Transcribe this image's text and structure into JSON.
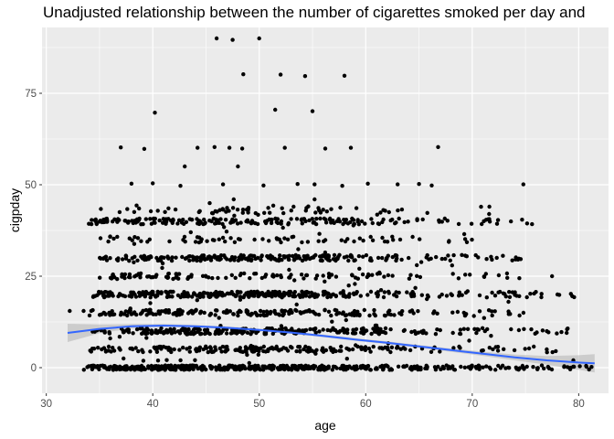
{
  "chart_data": {
    "type": "scatter",
    "title": "Unadjusted relationship between the number of cigarettes smoked per day and",
    "xlabel": "age",
    "ylabel": "cigpday",
    "xlim": [
      29.6,
      82.8
    ],
    "ylim": [
      -7,
      93
    ],
    "xticks": [
      30,
      40,
      50,
      60,
      70,
      80
    ],
    "yticks": [
      0,
      25,
      50,
      75
    ],
    "grid": true,
    "legend": "none",
    "colors": {
      "panel": "#ebebeb",
      "grid": "#ffffff",
      "points": "#000000",
      "smooth": "#3366ff",
      "ribbon": "#b3b3b3"
    },
    "points": [
      [
        46,
        90
      ],
      [
        47.5,
        89.6
      ],
      [
        50,
        90
      ],
      [
        48.5,
        80.2
      ],
      [
        52,
        80.1
      ],
      [
        54.3,
        79.7
      ],
      [
        58,
        79.8
      ],
      [
        51.5,
        70.5
      ],
      [
        55,
        70.1
      ],
      [
        40.2,
        69.7
      ],
      [
        37,
        60.2
      ],
      [
        39.2,
        59.8
      ],
      [
        44.2,
        60.1
      ],
      [
        45.8,
        60.3
      ],
      [
        47.2,
        60.1
      ],
      [
        48.4,
        59.9
      ],
      [
        52.4,
        60.1
      ],
      [
        56.2,
        59.9
      ],
      [
        58.6,
        60.1
      ],
      [
        66.8,
        60.3
      ],
      [
        43,
        55
      ],
      [
        48,
        55
      ],
      [
        38,
        50.3
      ],
      [
        40,
        50.4
      ],
      [
        42.6,
        49.7
      ],
      [
        46.6,
        50.1
      ],
      [
        50.4,
        49.8
      ],
      [
        53.6,
        50.2
      ],
      [
        55.2,
        50.1
      ],
      [
        57.8,
        49.7
      ],
      [
        60.2,
        50.3
      ],
      [
        63,
        50.1
      ],
      [
        65,
        50.2
      ],
      [
        66.2,
        49.8
      ],
      [
        74.8,
        50.1
      ],
      [
        47.6,
        46
      ],
      [
        55.2,
        46
      ],
      [
        33.5,
        15.5
      ],
      [
        32.2,
        15.5
      ],
      [
        36,
        8
      ],
      [
        35.2,
        5
      ],
      [
        34.3,
        0.3
      ],
      [
        80.7,
        0.5
      ],
      [
        81.2,
        0.2
      ],
      [
        79.5,
        2
      ],
      [
        77.5,
        25
      ],
      [
        78,
        20
      ]
    ],
    "smooth": [
      [
        32,
        9.5
      ],
      [
        35,
        10.6
      ],
      [
        38,
        11.3
      ],
      [
        41,
        11.5
      ],
      [
        44,
        11.3
      ],
      [
        47,
        10.9
      ],
      [
        50,
        10.3
      ],
      [
        53,
        9.6
      ],
      [
        56,
        8.7
      ],
      [
        59,
        7.7
      ],
      [
        62,
        6.8
      ],
      [
        65,
        5.8
      ],
      [
        68,
        4.8
      ],
      [
        71,
        3.8
      ],
      [
        74,
        2.8
      ],
      [
        77,
        2
      ],
      [
        80,
        1.4
      ],
      [
        81.5,
        1.2
      ]
    ],
    "ribbon_halfwidth": [
      [
        32,
        2.5
      ],
      [
        35,
        1.2
      ],
      [
        38,
        0.6
      ],
      [
        41,
        0.4
      ],
      [
        45,
        0.35
      ],
      [
        50,
        0.35
      ],
      [
        55,
        0.35
      ],
      [
        60,
        0.35
      ],
      [
        65,
        0.4
      ],
      [
        70,
        0.5
      ],
      [
        74,
        0.8
      ],
      [
        77,
        1.2
      ],
      [
        80,
        2
      ],
      [
        81.5,
        2.5
      ]
    ]
  }
}
